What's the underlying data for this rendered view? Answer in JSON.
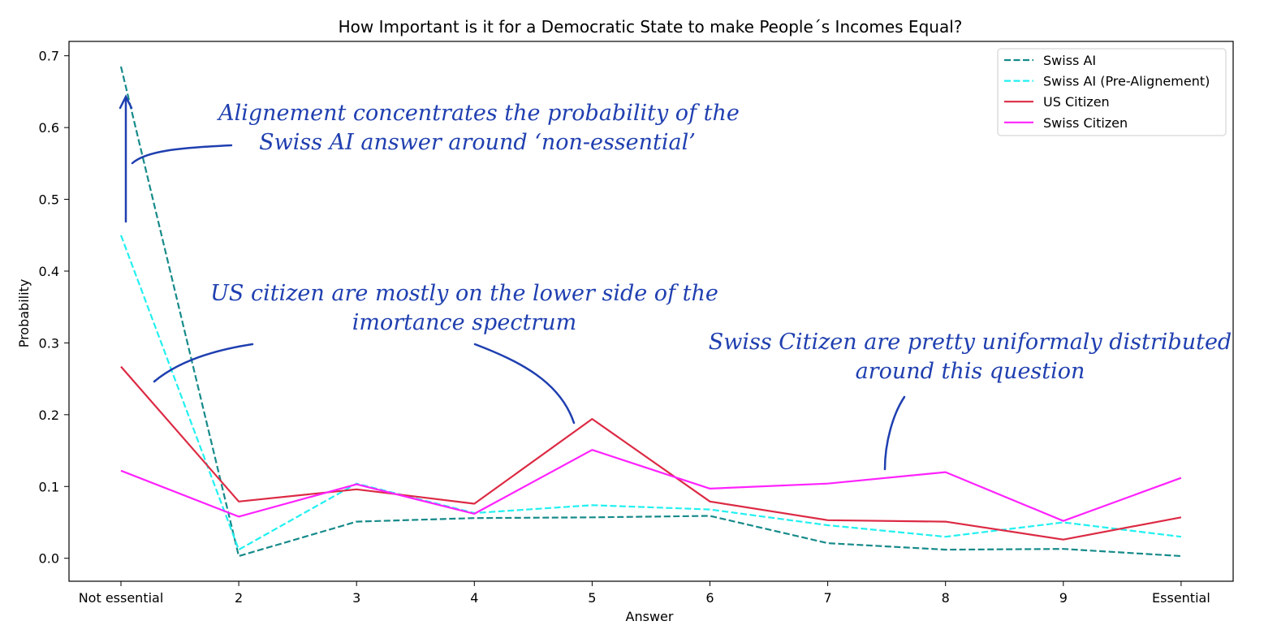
{
  "chart_data": {
    "type": "line",
    "title": "How Important is it for a Democratic State to make People´s Incomes Equal?",
    "xlabel": "Answer",
    "ylabel": "Probability",
    "categories": [
      "Not essential",
      "2",
      "3",
      "4",
      "5",
      "6",
      "7",
      "8",
      "9",
      "Essential"
    ],
    "ylim": [
      -0.032,
      0.72
    ],
    "yticks": [
      "0.0",
      "0.1",
      "0.2",
      "0.3",
      "0.4",
      "0.5",
      "0.6",
      "0.7"
    ],
    "grid": false,
    "legend_position": "top-right",
    "series": [
      {
        "name": "Swiss AI",
        "color": "#168a8a",
        "dash": "dashed",
        "values": [
          0.685,
          0.003,
          0.051,
          0.056,
          0.057,
          0.059,
          0.021,
          0.012,
          0.013,
          0.003
        ]
      },
      {
        "name": "Swiss AI (Pre-Alignement)",
        "color": "#22f0f0",
        "dash": "dashed",
        "values": [
          0.45,
          0.012,
          0.104,
          0.063,
          0.074,
          0.068,
          0.046,
          0.03,
          0.05,
          0.03
        ]
      },
      {
        "name": "US Citizen",
        "color": "#dc2a44",
        "dash": "solid",
        "values": [
          0.267,
          0.079,
          0.096,
          0.076,
          0.194,
          0.079,
          0.053,
          0.051,
          0.026,
          0.057
        ]
      },
      {
        "name": "Swiss Citizen",
        "color": "#ff22ff",
        "dash": "solid",
        "values": [
          0.122,
          0.058,
          0.103,
          0.062,
          0.151,
          0.097,
          0.104,
          0.12,
          0.052,
          0.112
        ]
      }
    ],
    "annotations": [
      {
        "lines": [
          "Alignement concentrates the probability of the",
          "Swiss AI answer around ‘non-essential’"
        ]
      },
      {
        "lines": [
          "US citizen are mostly on the lower side of the",
          "imortance spectrum"
        ]
      },
      {
        "lines": [
          "Swiss Citizen are pretty uniformaly distributed",
          "around this question"
        ]
      }
    ],
    "annotation_color": "#1f3fb0"
  }
}
